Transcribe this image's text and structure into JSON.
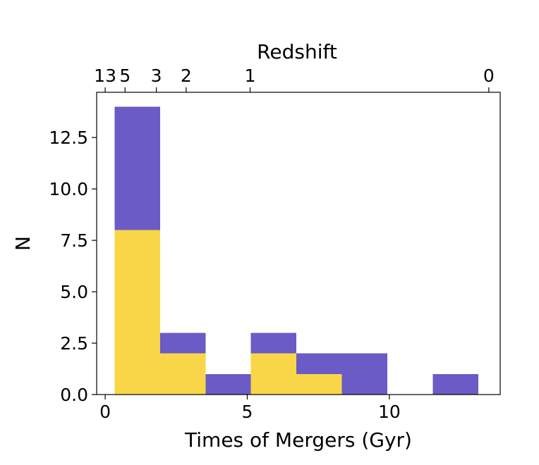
{
  "chart_data": {
    "type": "bar",
    "histogram": true,
    "stacked": true,
    "xlabel": "Times of Mergers (Gyr)",
    "ylabel": "N",
    "xlim": [
      -0.3,
      13.9
    ],
    "ylim": [
      0,
      14.7
    ],
    "xticks": [
      0,
      5,
      10
    ],
    "xtick_labels": [
      "0",
      "5",
      "10"
    ],
    "yticks": [
      0.0,
      2.5,
      5.0,
      7.5,
      10.0,
      12.5
    ],
    "ytick_labels": [
      "0.0",
      "2.5",
      "5.0",
      "7.5",
      "10.0",
      "12.5"
    ],
    "bin_edges": [
      0.33,
      1.93,
      3.53,
      5.13,
      6.73,
      8.33,
      9.93,
      11.53,
      13.13
    ],
    "series": [
      {
        "color": "#f8d648",
        "values": [
          8,
          2,
          0,
          2,
          1,
          0,
          0,
          0
        ]
      },
      {
        "color": "#6a5bc6",
        "values": [
          6,
          1,
          1,
          1,
          1,
          2,
          0,
          1
        ]
      }
    ],
    "secondary_x_axis": {
      "label": "Redshift",
      "ticks": [
        {
          "label": "13",
          "time_gyr": 0.0
        },
        {
          "label": "5",
          "time_gyr": 0.7
        },
        {
          "label": "3",
          "time_gyr": 1.8
        },
        {
          "label": "2",
          "time_gyr": 2.85
        },
        {
          "label": "1",
          "time_gyr": 5.1
        },
        {
          "label": "0",
          "time_gyr": 13.5
        }
      ]
    },
    "grid": false,
    "legend": null
  }
}
